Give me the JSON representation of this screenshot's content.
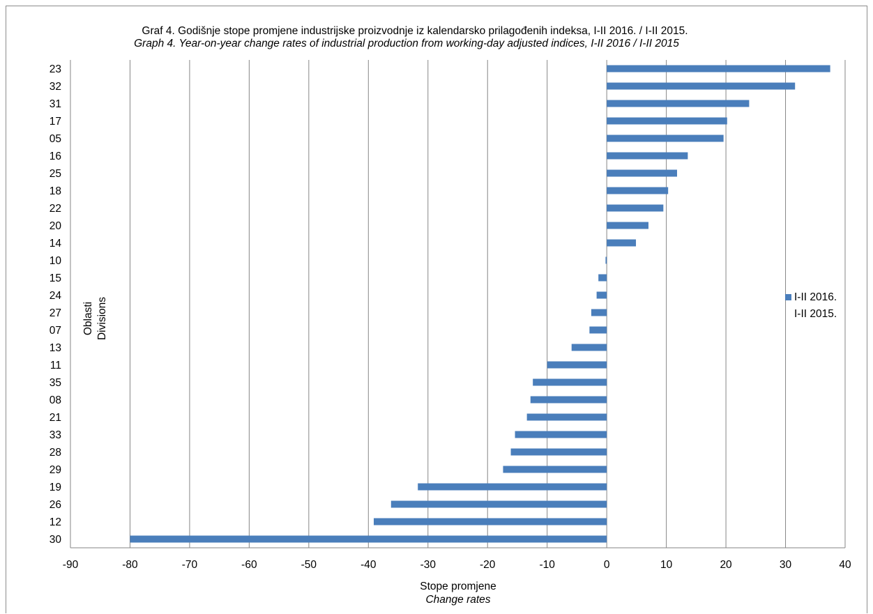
{
  "chart_data": {
    "type": "bar",
    "orientation": "horizontal",
    "title": "Graf 4. Godišnje stope  promjene industrijske proizvodnje iz kalendarsko prilagođenih indeksa, I-II  2016. / I-II  2015.",
    "subtitle": "Graph 4. Year-on-year change rates of industrial production from working-day adjusted indices, I-II 2016 / I-II 2015",
    "xlabel": "Stope promjene",
    "xlabel_en": "Change rates",
    "ylabel": "Oblasti",
    "ylabel_en": "Divisions",
    "xlim": [
      -90,
      40
    ],
    "xticks": [
      -90,
      -80,
      -70,
      -60,
      -50,
      -40,
      -30,
      -20,
      -10,
      0,
      10,
      20,
      30,
      40
    ],
    "grid": true,
    "legend_position": "right",
    "legend_lines": [
      "I-II 2016.",
      "I-II 2015."
    ],
    "categories": [
      "23",
      "32",
      "31",
      "17",
      "05",
      "16",
      "25",
      "18",
      "22",
      "20",
      "14",
      "10",
      "15",
      "24",
      "27",
      "07",
      "13",
      "11",
      "35",
      "08",
      "21",
      "33",
      "28",
      "29",
      "19",
      "26",
      "12",
      "30"
    ],
    "series": [
      {
        "name": "I-II 2016. / I-II 2015.",
        "color": "#4a7ebb",
        "values": [
          37.5,
          31.6,
          23.9,
          20.2,
          19.6,
          13.6,
          11.8,
          10.3,
          9.5,
          7.0,
          4.9,
          -0.2,
          -1.4,
          -1.7,
          -2.6,
          -2.9,
          -5.9,
          -10.0,
          -12.4,
          -12.8,
          -13.4,
          -15.4,
          -16.1,
          -17.4,
          -31.7,
          -36.2,
          -39.1,
          -80.0
        ]
      }
    ]
  }
}
